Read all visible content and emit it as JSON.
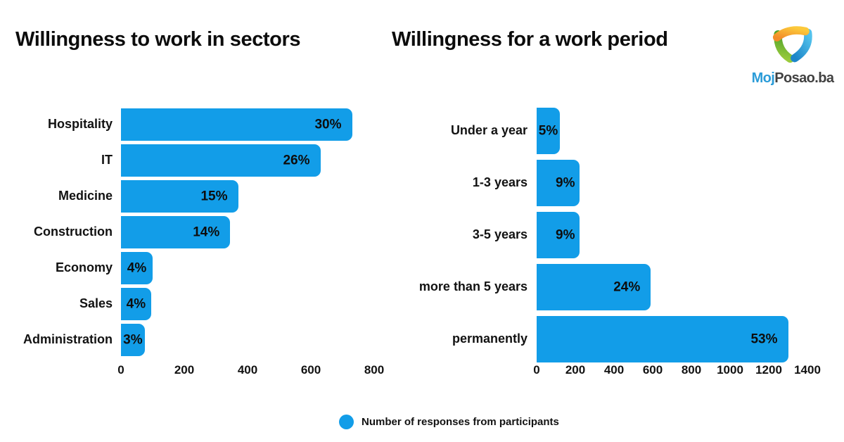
{
  "titles": {
    "left": "Willingness to work in sectors",
    "right": "Willingness for a work period"
  },
  "logo": {
    "brand_primary": "Moj",
    "brand_secondary": "Posao.ba",
    "primary_color": "#2B9CD8",
    "secondary_color": "#414141",
    "icon": "mojposao-swirl-triangle",
    "icon_colors": {
      "orange_start": "#F28C28",
      "orange_end": "#FCC93B",
      "green_start": "#9ACA3C",
      "green_end": "#4FA32A",
      "blue_start": "#53C2EC",
      "blue_end": "#1D86C9"
    }
  },
  "legend": {
    "marker": "circle",
    "marker_color": "#129DE8",
    "label": "Number of responses from participants"
  },
  "colors": {
    "bar": "#129DE8",
    "text": "#121212",
    "background": "#ffffff"
  },
  "chart_data": [
    {
      "type": "bar",
      "orientation": "horizontal",
      "title": "Willingness to work in sectors",
      "categories": [
        "Hospitality",
        "IT",
        "Medicine",
        "Construction",
        "Economy",
        "Sales",
        "Administration"
      ],
      "values": [
        730,
        630,
        370,
        345,
        100,
        95,
        75
      ],
      "value_labels": [
        "30%",
        "26%",
        "15%",
        "14%",
        "4%",
        "4%",
        "3%"
      ],
      "xlabel": "",
      "ylabel": "",
      "xlim": [
        0,
        800
      ],
      "xticks": [
        0,
        200,
        400,
        600,
        800
      ],
      "xtick_labels": [
        "0",
        "200",
        "400",
        "600",
        "800"
      ],
      "grid": false,
      "legend": "Number of responses from participants",
      "legend_position": "bottom-center"
    },
    {
      "type": "bar",
      "orientation": "horizontal",
      "title": "Willingness for a work period",
      "categories": [
        "Under a year",
        "1-3 years",
        "3-5 years",
        "more than 5 years",
        "permanently"
      ],
      "values": [
        120,
        220,
        220,
        590,
        1300
      ],
      "value_labels": [
        "5%",
        "9%",
        "9%",
        "24%",
        "53%"
      ],
      "xlabel": "",
      "ylabel": "",
      "xlim": [
        0,
        1400
      ],
      "xticks": [
        0,
        200,
        400,
        600,
        800,
        1000,
        1200,
        1400
      ],
      "xtick_labels": [
        "0",
        "200",
        "400",
        "600",
        "800",
        "1000",
        "1200",
        "1400"
      ],
      "grid": false,
      "legend": "Number of responses from participants",
      "legend_position": "bottom-center"
    }
  ]
}
